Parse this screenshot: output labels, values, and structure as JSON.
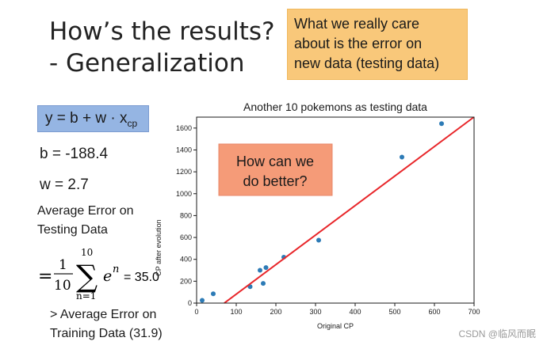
{
  "slide": {
    "title_line1": "How’s the results?",
    "title_line2": "- Generalization",
    "care_callout": {
      "line1": "What we really care",
      "line2": "about is the error on",
      "line3": "new data (testing data)",
      "color": "#f9c87a"
    },
    "formula": {
      "lhs": "y = b + w · x",
      "subscript": "cp",
      "color": "#95b5e3"
    },
    "b_value": "b = -188.4",
    "w_value": "w = 2.7",
    "avg_error_line1": "Average Error on",
    "avg_error_line2": "Testing Data",
    "sum_equation": {
      "eq": "=",
      "numerator": "1",
      "denominator": "10",
      "sum_upper": "10",
      "sum_lower": "n=1",
      "term_base": "e",
      "term_exp": "n",
      "result": "= 35.0"
    },
    "training_line1": "> Average Error on",
    "training_line2": "Training Data (31.9)",
    "better_callout": {
      "line1": "How can we",
      "line2": "do better?",
      "color": "#f59b78"
    },
    "watermark": "CSDN @临风而眠"
  },
  "chart_data": {
    "type": "scatter",
    "title": "Another 10 pokemons as testing data",
    "xlabel": "Original CP",
    "ylabel": "CP after evolution",
    "xlim": [
      0,
      700
    ],
    "ylim": [
      0,
      1700
    ],
    "xticks": [
      0,
      100,
      200,
      300,
      400,
      500,
      600,
      700
    ],
    "yticks": [
      0,
      200,
      400,
      600,
      800,
      1000,
      1200,
      1400,
      1600
    ],
    "points": [
      {
        "x": 14,
        "y": 25
      },
      {
        "x": 42,
        "y": 85
      },
      {
        "x": 135,
        "y": 150
      },
      {
        "x": 160,
        "y": 300
      },
      {
        "x": 168,
        "y": 180
      },
      {
        "x": 175,
        "y": 325
      },
      {
        "x": 220,
        "y": 420
      },
      {
        "x": 308,
        "y": 575
      },
      {
        "x": 518,
        "y": 1335
      },
      {
        "x": 618,
        "y": 1640
      }
    ],
    "fit_line": {
      "b": -188.4,
      "w": 2.7
    },
    "point_color": "#2d7bb6",
    "line_color": "#e8262a",
    "grid": false
  }
}
